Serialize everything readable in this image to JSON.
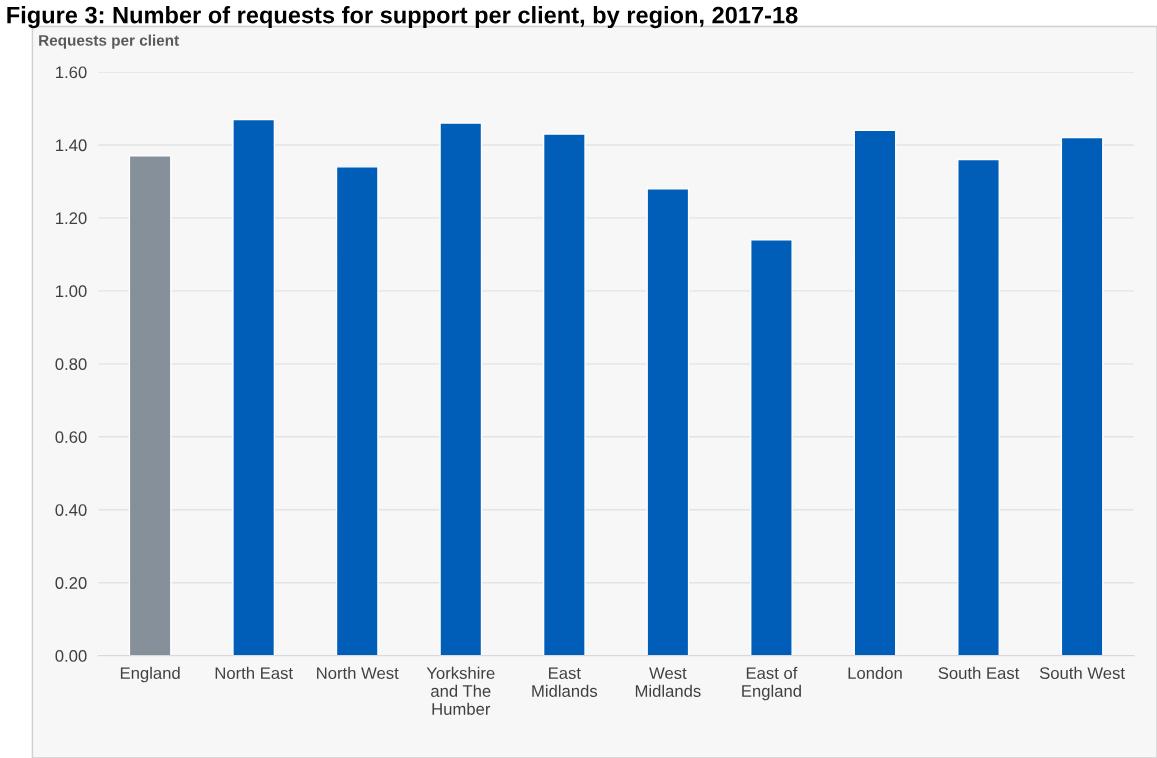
{
  "chart_data": {
    "type": "bar",
    "title": "Figure 3: Number of requests for support per client, by region, 2017-18",
    "ylabel": "Requests per client",
    "categories": [
      "England",
      "North East",
      "North West",
      "Yorkshire\nand The\nHumber",
      "East\nMidlands",
      "West\nMidlands",
      "East of\nEngland",
      "London",
      "South East",
      "South West"
    ],
    "values": [
      1.37,
      1.47,
      1.34,
      1.46,
      1.43,
      1.28,
      1.14,
      1.44,
      1.36,
      1.42
    ],
    "colors": [
      "#86909a",
      "#005eb8",
      "#005eb8",
      "#005eb8",
      "#005eb8",
      "#005eb8",
      "#005eb8",
      "#005eb8",
      "#005eb8",
      "#005eb8"
    ],
    "ylim": [
      0,
      1.6
    ],
    "yticks": [
      {
        "value": 0,
        "label": "0.00"
      },
      {
        "value": 0.2,
        "label": "0.20"
      },
      {
        "value": 0.4,
        "label": "0.40"
      },
      {
        "value": 0.6,
        "label": "0.60"
      },
      {
        "value": 0.8,
        "label": "0.80"
      },
      {
        "value": 1.0,
        "label": "1.00"
      },
      {
        "value": 1.2,
        "label": "1.20"
      },
      {
        "value": 1.4,
        "label": "1.40"
      },
      {
        "value": 1.6,
        "label": "1.60"
      }
    ],
    "grid": "y"
  }
}
